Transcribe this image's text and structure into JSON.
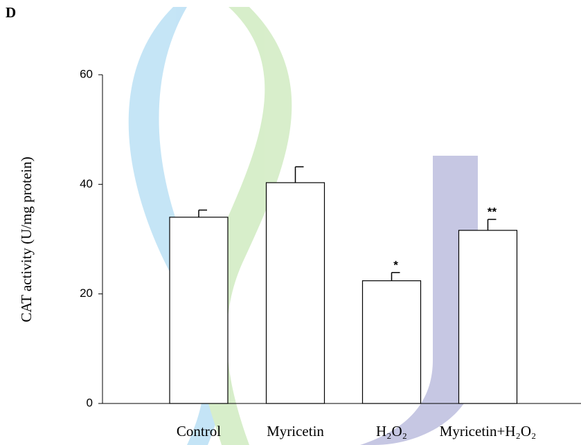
{
  "chart_data": {
    "type": "bar",
    "panel_label": "D",
    "ylabel": "CAT activity (U/mg protein)",
    "categories": [
      "Control",
      "Myricetin",
      "H₂O₂",
      "Myricetin+H₂O₂"
    ],
    "values": [
      34,
      40.3,
      22.4,
      31.6
    ],
    "errors": [
      1.3,
      2.9,
      1.5,
      2
    ],
    "significance": [
      null,
      null,
      "*",
      "**"
    ],
    "color": "#ffffff",
    "ylim": [
      0,
      60
    ],
    "yticks": [
      0,
      20,
      40,
      60
    ],
    "grid": false
  }
}
